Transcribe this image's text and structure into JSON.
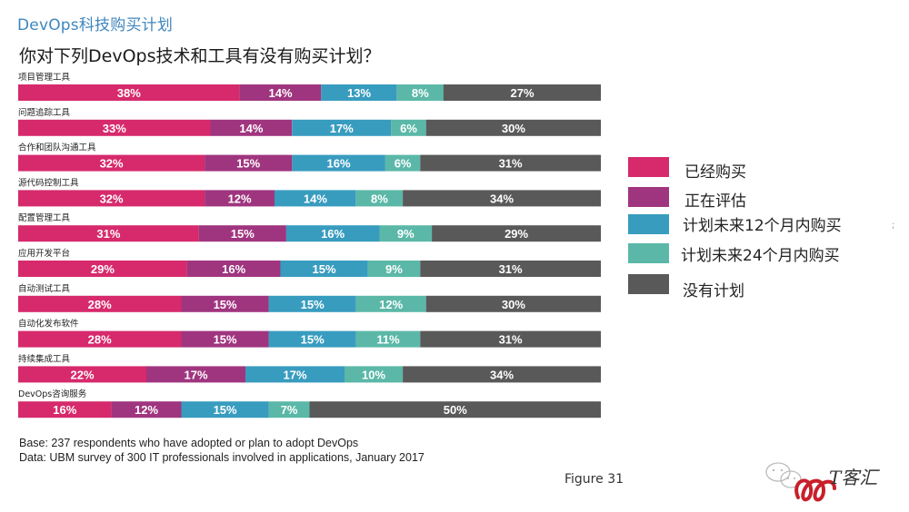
{
  "header": {
    "title": "DevOps科技购买计划",
    "question": "你对下列DevOps技术和工具有没有购买计划？"
  },
  "chart_data": {
    "type": "bar",
    "orientation": "horizontal",
    "stacked": true,
    "title": "你对下列DevOps技术和工具有没有购买计划？",
    "xlabel": "",
    "ylabel": "",
    "xlim": [
      0,
      100
    ],
    "grid": false,
    "legend_position": "right",
    "categories": [
      "项目管理工具",
      "问题追踪工具",
      "合作和团队沟通工具",
      "源代码控制工具",
      "配置管理工具",
      "应用开发平台",
      "自动测试工具",
      "自动化发布软件",
      "持续集成工具",
      "DevOps咨询服务"
    ],
    "series": [
      {
        "name": "已经购买",
        "color": "#d62a6c",
        "values": [
          38,
          33,
          32,
          32,
          31,
          29,
          28,
          28,
          22,
          16
        ]
      },
      {
        "name": "正在评估",
        "color": "#a0357f",
        "values": [
          14,
          14,
          15,
          12,
          15,
          16,
          15,
          15,
          17,
          12
        ]
      },
      {
        "name": "计划未来12个月内购买",
        "color": "#389cbf",
        "values": [
          13,
          17,
          16,
          14,
          16,
          15,
          15,
          15,
          17,
          15
        ]
      },
      {
        "name": "计划未来24个月内购买",
        "color": "#5bb8a8",
        "values": [
          8,
          6,
          6,
          8,
          9,
          9,
          12,
          11,
          10,
          7
        ]
      },
      {
        "name": "没有计划",
        "color": "#595959",
        "values": [
          27,
          30,
          31,
          34,
          29,
          31,
          30,
          31,
          34,
          50
        ]
      }
    ],
    "value_suffix": "%"
  },
  "legend": {
    "items": [
      {
        "label": "已经购买",
        "color": "#d62a6c"
      },
      {
        "label": "正在评估",
        "color": "#a0357f"
      },
      {
        "label": "计划未来12个月内购买",
        "color": "#389cbf"
      },
      {
        "label": "计划未来24个月内购买",
        "color": "#5bb8a8"
      },
      {
        "label": "没有计划",
        "color": "#595959"
      }
    ]
  },
  "footnotes": {
    "base": "Base: 237 respondents who have adopted or plan to adopt DevOps",
    "data": "Data: UBM survey of 300 IT professionals involved in applications, January 2017"
  },
  "figure_label": "Figure 31",
  "watermark": {
    "text": "T客汇",
    "icon": "wechat-icon"
  },
  "stray_mark": ";"
}
